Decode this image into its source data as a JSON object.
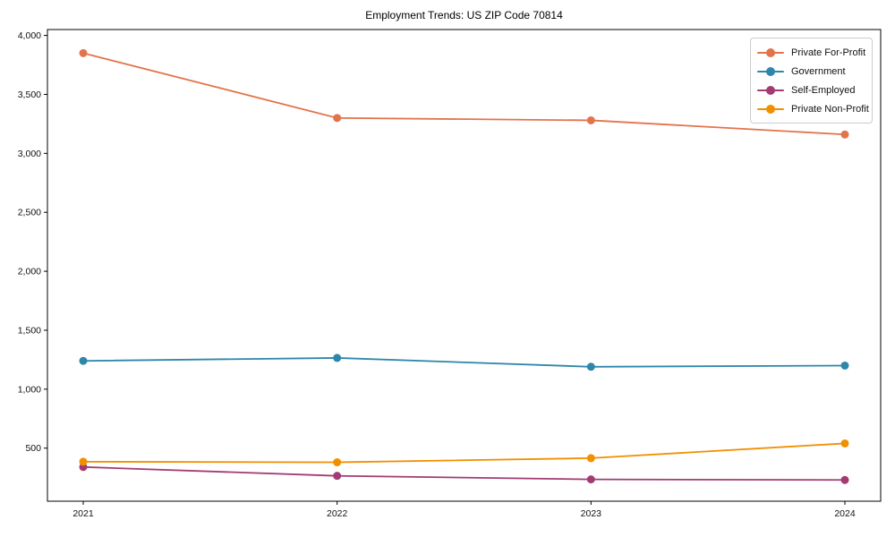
{
  "chart_data": {
    "type": "line",
    "title": "Employment Trends: US ZIP Code 70814",
    "categories": [
      "2021",
      "2022",
      "2023",
      "2024"
    ],
    "series": [
      {
        "name": "Private For-Profit",
        "color": "#E2744B",
        "values": [
          3850,
          3300,
          3280,
          3160
        ]
      },
      {
        "name": "Government",
        "color": "#2E86AB",
        "values": [
          1240,
          1265,
          1190,
          1200
        ]
      },
      {
        "name": "Self-Employed",
        "color": "#A23B72",
        "values": [
          340,
          265,
          235,
          230
        ]
      },
      {
        "name": "Private Non-Profit",
        "color": "#F18F01",
        "values": [
          385,
          380,
          415,
          540
        ]
      }
    ],
    "xlabel": "",
    "ylabel": "",
    "ylim": [
      50,
      4050
    ],
    "yticks": {
      "values": [
        500,
        1000,
        1500,
        2000,
        2500,
        3000,
        3500,
        4000
      ],
      "labels": [
        "500",
        "1,000",
        "1,500",
        "2,000",
        "2,500",
        "3,000",
        "3,500",
        "4,000"
      ]
    },
    "grid": false,
    "legend_position": "upper right",
    "marker": "circle",
    "axis_color": "#000000"
  }
}
